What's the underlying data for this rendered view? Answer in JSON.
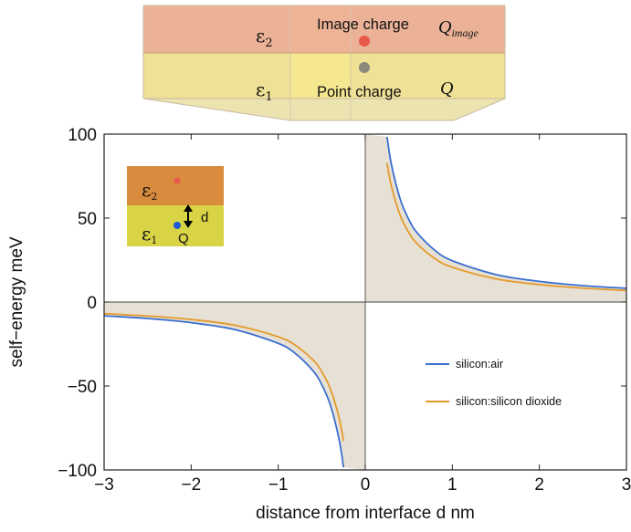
{
  "diagram": {
    "upper": {
      "epsilon": "ε",
      "epsilon_sub": "2",
      "label": "Image charge",
      "charge": "Q",
      "charge_sub": "image",
      "dot_color": "#e8594a"
    },
    "lower": {
      "epsilon": "ε",
      "epsilon_sub": "1",
      "label": "Point charge",
      "charge": "Q",
      "dot_color": "#8a8a7a"
    },
    "colors": {
      "upper": "#e8a585",
      "lower": "#ecdc84"
    }
  },
  "inset": {
    "upper": {
      "epsilon": "ε",
      "epsilon_sub": "2",
      "color": "#d98b3e",
      "dot_color": "#e8594a"
    },
    "lower": {
      "epsilon": "ε",
      "epsilon_sub": "1",
      "color": "#d9d446",
      "dot_color": "#1f5ad6",
      "charge": "Q",
      "distance": "d"
    }
  },
  "chart_data": {
    "type": "line",
    "xlabel": "distance from interface d nm",
    "ylabel": "self−energy meV",
    "xlim": [
      -3,
      3
    ],
    "ylim": [
      -100,
      100
    ],
    "xticks": [
      -3,
      -2,
      -1,
      0,
      1,
      2,
      3
    ],
    "xtick_labels": [
      "−3",
      "−2",
      "−1",
      "0",
      "1",
      "2",
      "3"
    ],
    "yticks": [
      -100,
      -50,
      0,
      50,
      100
    ],
    "ytick_labels": [
      "−100",
      "−50",
      "0",
      "50",
      "100"
    ],
    "x": [
      -3.0,
      -2.5,
      -2.0,
      -1.5,
      -1.0,
      -0.8,
      -0.6,
      -0.5,
      -0.4,
      -0.3,
      -0.25,
      0.25,
      0.3,
      0.4,
      0.5,
      0.6,
      0.8,
      1.0,
      1.5,
      2.0,
      2.5,
      3.0
    ],
    "series": [
      {
        "name": "silicon:air",
        "color": "#3a6fd0",
        "values": [
          -8.2,
          -9.8,
          -12.3,
          -16.4,
          -24.6,
          -30.8,
          -41.0,
          -49.2,
          -61.5,
          -82.0,
          -98.4,
          98.4,
          82.0,
          61.5,
          49.2,
          41.0,
          30.8,
          24.6,
          16.4,
          12.3,
          9.8,
          8.2
        ]
      },
      {
        "name": "silicon:silicon dioxide",
        "color": "#e39a2c",
        "values": [
          -6.9,
          -8.3,
          -10.4,
          -13.8,
          -20.7,
          -25.9,
          -34.5,
          -41.4,
          -51.8,
          -69.0,
          -82.8,
          82.8,
          69.0,
          51.8,
          41.4,
          34.5,
          25.9,
          20.7,
          13.8,
          10.4,
          8.3,
          6.9
        ]
      }
    ],
    "fill_color": "#e7e0d4",
    "grid": false,
    "legend": "bottom-right"
  }
}
